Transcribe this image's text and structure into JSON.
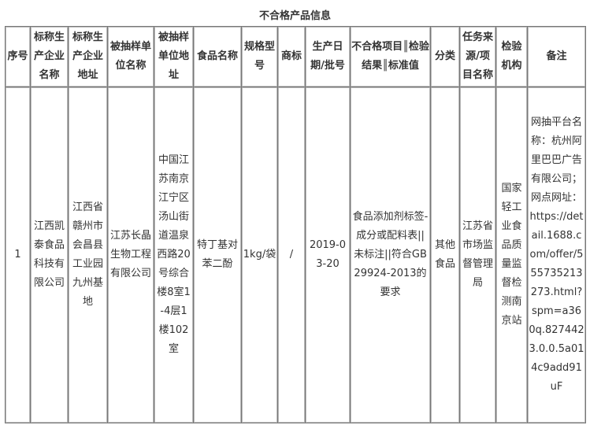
{
  "title": "不合格产品信息",
  "headers": [
    "序号",
    "标称生产企业名称",
    "标称生产企业地址",
    "被抽样单位名称",
    "被抽样单位地址",
    "食品名称",
    "规格型号",
    "商标",
    "生产日期/批号",
    "不合格项目║检验结果║标准值",
    "分类",
    "任务来源/项目名称",
    "检验机构",
    "备注"
  ],
  "rows": [
    [
      "1",
      "江西凯泰食品科技有限公司",
      "江西省赣州市会昌县工业园九州基地",
      "江苏长晶生物工程有限公司",
      "中国江苏南京江宁区汤山街道温泉西路20号综合楼8室1-4层1楼102室",
      "特丁基对苯二酚",
      "1kg/袋",
      "/",
      "2019-03-20",
      "食品添加剂标签-成分或配料表||未标注||符合GB29924-2013的要求",
      "其他食品",
      "江苏省市场监督管理局",
      "国家轻工业食品质量监督检测南京站",
      "网抽平台名称：杭州阿里巴巴广告有限公司；网点网址：https://detail.1688.com/offer/555735213273.html?spm=a360q.8274423.0.0.5a014c9add91uF"
    ]
  ]
}
